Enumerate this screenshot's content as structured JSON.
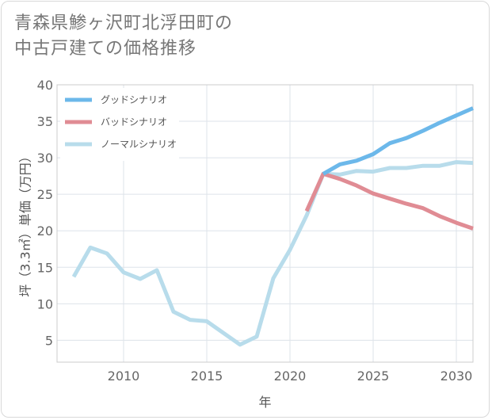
{
  "title_lines": [
    "青森県鯵ヶ沢町北浮田町の",
    "中古戸建ての価格推移"
  ],
  "chart_data": {
    "type": "line",
    "xlabel": "年",
    "ylabel": "坪（3.3㎡）単価（万円）",
    "xlim": [
      2006,
      2031
    ],
    "ylim": [
      2,
      40
    ],
    "xticks": [
      2010,
      2015,
      2020,
      2025,
      2030
    ],
    "yticks": [
      5,
      10,
      15,
      20,
      25,
      30,
      35,
      40
    ],
    "grid": true,
    "legend_position": "top-left",
    "series": [
      {
        "name": "グッドシナリオ",
        "color": "#6cb8ea",
        "x": [
          2022,
          2023,
          2024,
          2025,
          2026,
          2027,
          2028,
          2029,
          2030,
          2031
        ],
        "y": [
          27.8,
          29.1,
          29.6,
          30.5,
          32.0,
          32.7,
          33.7,
          34.8,
          35.8,
          36.8
        ]
      },
      {
        "name": "バッドシナリオ",
        "color": "#e08c94",
        "x": [
          2021,
          2022,
          2023,
          2024,
          2025,
          2026,
          2027,
          2028,
          2029,
          2030,
          2031
        ],
        "y": [
          22.7,
          27.8,
          27.1,
          26.2,
          25.1,
          24.4,
          23.7,
          23.1,
          22.0,
          21.1,
          20.3
        ]
      },
      {
        "name": "ノーマルシナリオ",
        "color": "#b8dceb",
        "x": [
          2007,
          2008,
          2009,
          2010,
          2011,
          2012,
          2013,
          2014,
          2015,
          2016,
          2017,
          2018,
          2019,
          2020,
          2021,
          2022,
          2023,
          2024,
          2025,
          2026,
          2027,
          2028,
          2029,
          2030,
          2031
        ],
        "y": [
          13.7,
          17.7,
          16.9,
          14.3,
          13.4,
          14.6,
          8.9,
          7.8,
          7.6,
          6.0,
          4.4,
          5.5,
          13.5,
          17.4,
          22.1,
          27.8,
          27.7,
          28.2,
          28.1,
          28.6,
          28.6,
          28.9,
          28.9,
          29.4,
          29.3
        ]
      }
    ]
  }
}
